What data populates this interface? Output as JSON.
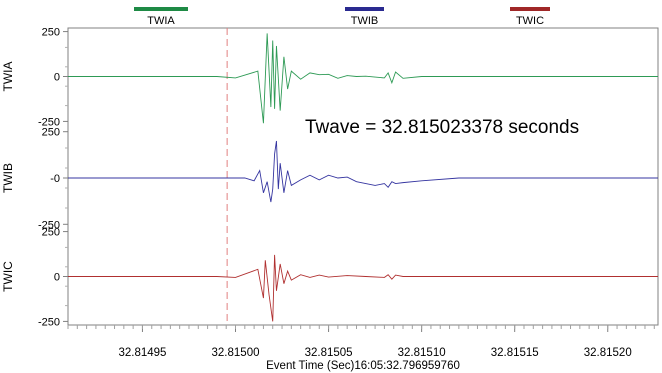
{
  "chart_data": {
    "type": "line",
    "annotation": "Twave = 32.815023378 seconds",
    "xlabel": "Event Time (Sec)16:05:32.796959760",
    "xlim": [
      32.81491,
      32.815227
    ],
    "xticks": [
      "32.81495",
      "32.81500",
      "32.81505",
      "32.81510",
      "32.81515",
      "32.81520"
    ],
    "xtick_values": [
      32.81495,
      32.815,
      32.81505,
      32.8151,
      32.81515,
      32.8152
    ],
    "marker_x": 32.8149955,
    "marker_color": "#e08080",
    "legend_position": "top",
    "series": [
      {
        "name": "TWIA",
        "color": "#2e9a55",
        "legend_color": "#1e8a45",
        "ylabel": "TWIA",
        "ylim": [
          -270,
          270
        ],
        "yticks": [
          "250",
          "0",
          "-250"
        ],
        "ytick_values": [
          250,
          0,
          -250
        ],
        "points": [
          [
            32.81491,
            0
          ],
          [
            32.81499,
            0
          ],
          [
            32.815,
            -8
          ],
          [
            32.815012,
            30
          ],
          [
            32.815015,
            -260
          ],
          [
            32.815017,
            240
          ],
          [
            32.815019,
            -170
          ],
          [
            32.81502,
            200
          ],
          [
            32.815021,
            -180
          ],
          [
            32.815022,
            170
          ],
          [
            32.815024,
            -190
          ],
          [
            32.815026,
            110
          ],
          [
            32.815028,
            -70
          ],
          [
            32.81503,
            30
          ],
          [
            32.815035,
            -15
          ],
          [
            32.81504,
            20
          ],
          [
            32.815045,
            10
          ],
          [
            32.81505,
            12
          ],
          [
            32.815055,
            -10
          ],
          [
            32.81506,
            5
          ],
          [
            32.815065,
            0
          ],
          [
            32.81507,
            2
          ],
          [
            32.815075,
            -3
          ],
          [
            32.81508,
            -8
          ],
          [
            32.815082,
            20
          ],
          [
            32.815084,
            -35
          ],
          [
            32.815086,
            25
          ],
          [
            32.81509,
            -10
          ],
          [
            32.8151,
            0
          ],
          [
            32.815227,
            0
          ]
        ]
      },
      {
        "name": "TWIB",
        "color": "#3535a0",
        "legend_color": "#2a2a90",
        "ylabel": "TWIB",
        "ylim": [
          -270,
          270
        ],
        "yticks": [
          "250",
          "-0",
          "-250"
        ],
        "ytick_values": [
          250,
          0,
          -250
        ],
        "points": [
          [
            32.81491,
            0
          ],
          [
            32.815005,
            0
          ],
          [
            32.81501,
            -15
          ],
          [
            32.815013,
            40
          ],
          [
            32.815015,
            -80
          ],
          [
            32.815017,
            -20
          ],
          [
            32.815019,
            -130
          ],
          [
            32.81502,
            -60
          ],
          [
            32.815021,
            130
          ],
          [
            32.815022,
            200
          ],
          [
            32.815023,
            -60
          ],
          [
            32.815024,
            80
          ],
          [
            32.815026,
            -80
          ],
          [
            32.815028,
            40
          ],
          [
            32.81503,
            -40
          ],
          [
            32.815035,
            -10
          ],
          [
            32.81504,
            15
          ],
          [
            32.815045,
            -10
          ],
          [
            32.81505,
            15
          ],
          [
            32.815055,
            0
          ],
          [
            32.81506,
            5
          ],
          [
            32.815065,
            -20
          ],
          [
            32.81507,
            -30
          ],
          [
            32.815075,
            -40
          ],
          [
            32.81508,
            -30
          ],
          [
            32.815082,
            -50
          ],
          [
            32.815084,
            -20
          ],
          [
            32.815086,
            -30
          ],
          [
            32.81509,
            -25
          ],
          [
            32.8151,
            -15
          ],
          [
            32.81512,
            0
          ],
          [
            32.815227,
            0
          ]
        ]
      },
      {
        "name": "TWIC",
        "color": "#b03030",
        "legend_color": "#a02828",
        "ylabel": "TWIC",
        "ylim": [
          -270,
          270
        ],
        "yticks": [
          "250",
          "0",
          "-250"
        ],
        "ytick_values": [
          250,
          0,
          -250
        ],
        "points": [
          [
            32.81491,
            0
          ],
          [
            32.81499,
            0
          ],
          [
            32.815,
            -5
          ],
          [
            32.815012,
            40
          ],
          [
            32.815015,
            -120
          ],
          [
            32.815016,
            90
          ],
          [
            32.815018,
            -100
          ],
          [
            32.81502,
            -250
          ],
          [
            32.815021,
            120
          ],
          [
            32.815022,
            -80
          ],
          [
            32.815024,
            70
          ],
          [
            32.815026,
            -40
          ],
          [
            32.815028,
            30
          ],
          [
            32.81503,
            -20
          ],
          [
            32.815035,
            10
          ],
          [
            32.81504,
            -5
          ],
          [
            32.815045,
            8
          ],
          [
            32.81505,
            -3
          ],
          [
            32.81506,
            5
          ],
          [
            32.81507,
            0
          ],
          [
            32.81508,
            -5
          ],
          [
            32.815082,
            10
          ],
          [
            32.815084,
            -15
          ],
          [
            32.815086,
            8
          ],
          [
            32.81509,
            0
          ],
          [
            32.815227,
            0
          ]
        ]
      }
    ]
  }
}
